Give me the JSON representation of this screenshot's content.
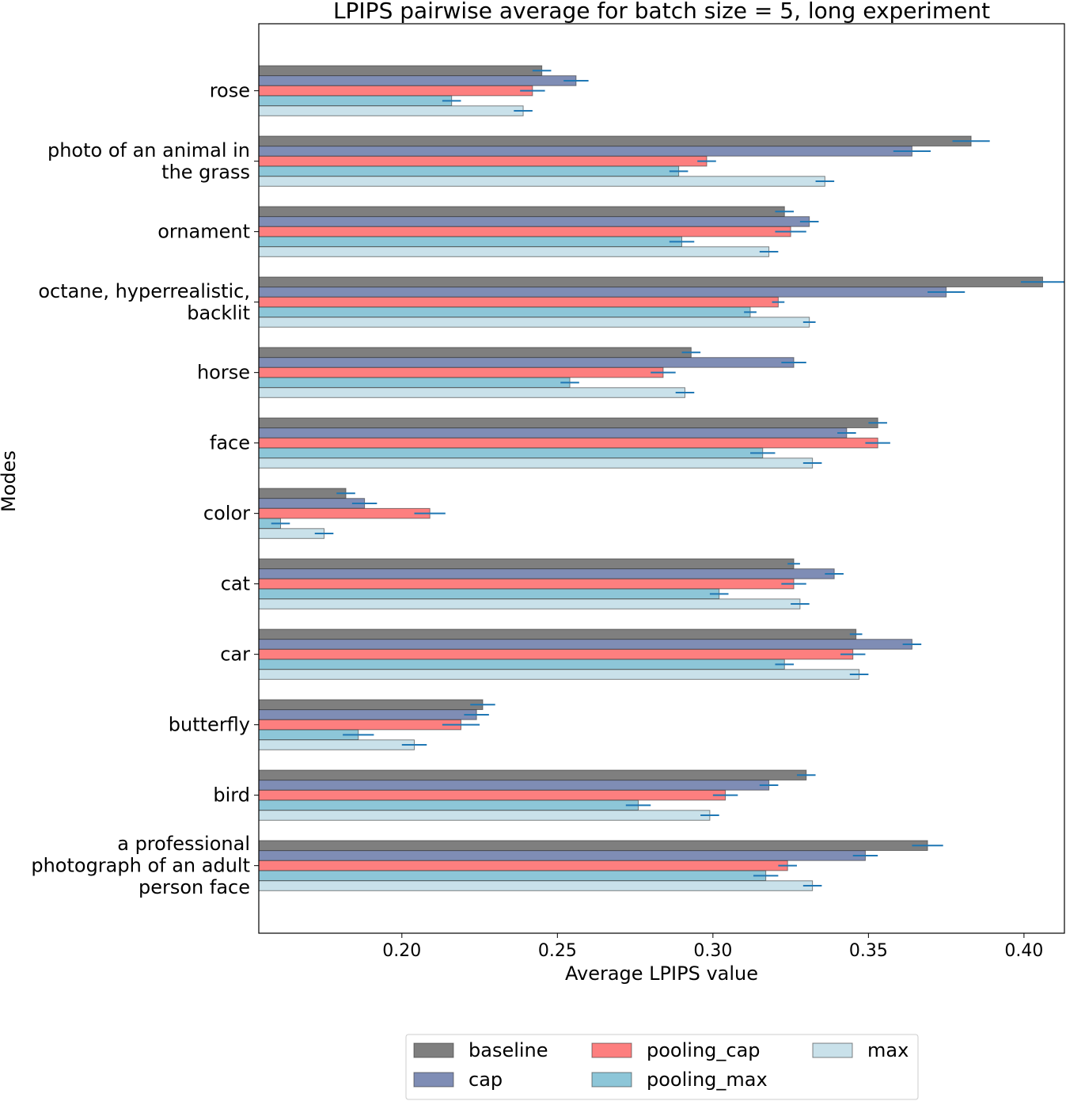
{
  "chart_data": {
    "type": "bar",
    "orientation": "horizontal",
    "title": "LPIPS pairwise average for batch size = 5, long experiment",
    "xlabel": "Average LPIPS value",
    "ylabel": "Modes",
    "xlim": [
      0.154,
      0.413
    ],
    "xticks": [
      "0.20",
      "0.25",
      "0.30",
      "0.35",
      "0.40"
    ],
    "categories": [
      [
        "rose"
      ],
      [
        "photo of an animal in",
        "the grass"
      ],
      [
        "ornament"
      ],
      [
        "octane, hyperrealistic,",
        "backlit"
      ],
      [
        "horse"
      ],
      [
        "face"
      ],
      [
        "color"
      ],
      [
        "cat"
      ],
      [
        "car"
      ],
      [
        "butterfly"
      ],
      [
        "bird"
      ],
      [
        "a professional",
        "photograph of an adult",
        "person face"
      ]
    ],
    "series": [
      {
        "name": "baseline",
        "color": "#7f7f7f",
        "values": [
          0.245,
          0.383,
          0.323,
          0.406,
          0.293,
          0.353,
          0.182,
          0.326,
          0.346,
          0.226,
          0.33,
          0.369
        ],
        "errors": [
          0.003,
          0.006,
          0.003,
          0.007,
          0.003,
          0.003,
          0.003,
          0.002,
          0.002,
          0.004,
          0.003,
          0.005
        ]
      },
      {
        "name": "cap",
        "color": "#7f8db5",
        "values": [
          0.256,
          0.364,
          0.331,
          0.375,
          0.326,
          0.343,
          0.188,
          0.339,
          0.364,
          0.224,
          0.318,
          0.349
        ],
        "errors": [
          0.004,
          0.006,
          0.003,
          0.006,
          0.004,
          0.003,
          0.004,
          0.003,
          0.003,
          0.004,
          0.003,
          0.004
        ]
      },
      {
        "name": "pooling_cap",
        "color": "#fd7f7f",
        "values": [
          0.242,
          0.298,
          0.325,
          0.321,
          0.284,
          0.353,
          0.209,
          0.326,
          0.345,
          0.219,
          0.304,
          0.324
        ],
        "errors": [
          0.004,
          0.003,
          0.005,
          0.002,
          0.004,
          0.004,
          0.005,
          0.004,
          0.004,
          0.006,
          0.004,
          0.003
        ]
      },
      {
        "name": "pooling_max",
        "color": "#8dc6d8",
        "values": [
          0.216,
          0.289,
          0.29,
          0.312,
          0.254,
          0.316,
          0.161,
          0.302,
          0.323,
          0.186,
          0.276,
          0.317
        ],
        "errors": [
          0.003,
          0.003,
          0.004,
          0.002,
          0.003,
          0.004,
          0.003,
          0.003,
          0.003,
          0.005,
          0.004,
          0.004
        ]
      },
      {
        "name": "max",
        "color": "#c9e1ea",
        "values": [
          0.239,
          0.336,
          0.318,
          0.331,
          0.291,
          0.332,
          0.175,
          0.328,
          0.347,
          0.204,
          0.299,
          0.332
        ],
        "errors": [
          0.003,
          0.003,
          0.003,
          0.002,
          0.003,
          0.003,
          0.003,
          0.003,
          0.003,
          0.004,
          0.003,
          0.003
        ]
      }
    ],
    "error_bar_color": "#1f77b4",
    "legend": {
      "position": "bottom-center",
      "columns": 3,
      "order": [
        "baseline",
        "cap",
        "pooling_cap",
        "pooling_max",
        "max"
      ]
    }
  }
}
